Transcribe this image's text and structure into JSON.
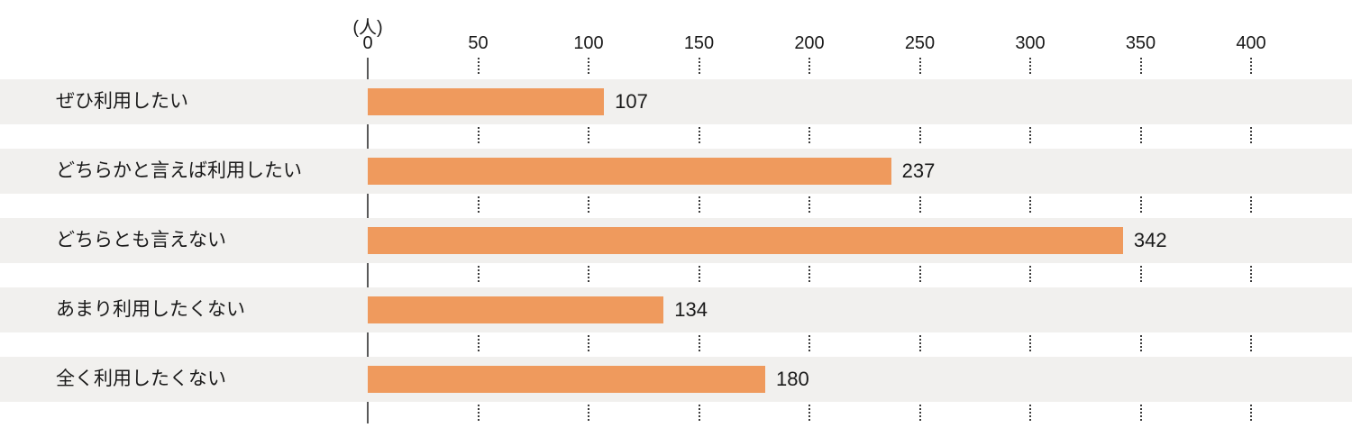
{
  "chart_data": {
    "type": "bar",
    "orientation": "horizontal",
    "title": "",
    "xlabel": "(人)",
    "ylabel": "",
    "categories": [
      "ぜひ利用したい",
      "どちらかと言えば利用したい",
      "どちらとも言えない",
      "あまり利用したくない",
      "全く利用したくない"
    ],
    "values": [
      107,
      237,
      342,
      134,
      180
    ],
    "xlim": [
      0,
      400
    ],
    "xticks": [
      0,
      50,
      100,
      150,
      200,
      250,
      300,
      350,
      400
    ],
    "grid": "dotted vertical tick marks in gaps between row bands",
    "legend_position": "none",
    "colors": {
      "bar": "#ef9a5d",
      "row_band": "#f1f0ee",
      "axis_line": "#595959",
      "text": "#1a1a1a",
      "tick_dots": "#3c3c3c",
      "background": "#ffffff"
    }
  }
}
